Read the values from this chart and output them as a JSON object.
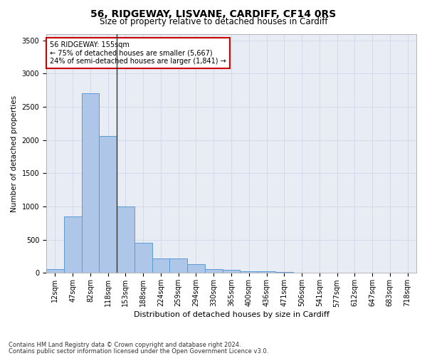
{
  "title1": "56, RIDGEWAY, LISVANE, CARDIFF, CF14 0RS",
  "title2": "Size of property relative to detached houses in Cardiff",
  "xlabel": "Distribution of detached houses by size in Cardiff",
  "ylabel": "Number of detached properties",
  "categories": [
    "12sqm",
    "47sqm",
    "82sqm",
    "118sqm",
    "153sqm",
    "188sqm",
    "224sqm",
    "259sqm",
    "294sqm",
    "330sqm",
    "365sqm",
    "400sqm",
    "436sqm",
    "471sqm",
    "506sqm",
    "541sqm",
    "577sqm",
    "612sqm",
    "647sqm",
    "683sqm",
    "718sqm"
  ],
  "values": [
    55,
    850,
    2700,
    2060,
    1005,
    455,
    220,
    220,
    130,
    60,
    50,
    30,
    25,
    20,
    0,
    0,
    0,
    0,
    0,
    0,
    0
  ],
  "bar_color": "#aec6e8",
  "bar_edge_color": "#5b9bd5",
  "vline_index": 3,
  "vline_color": "#333333",
  "annotation_text": "56 RIDGEWAY: 155sqm\n← 75% of detached houses are smaller (5,667)\n24% of semi-detached houses are larger (1,841) →",
  "annotation_box_color": "#ffffff",
  "annotation_box_edge": "#cc0000",
  "ylim": [
    0,
    3600
  ],
  "yticks": [
    0,
    500,
    1000,
    1500,
    2000,
    2500,
    3000,
    3500
  ],
  "grid_color": "#d0d8e8",
  "bg_color": "#e8edf5",
  "footer1": "Contains HM Land Registry data © Crown copyright and database right 2024.",
  "footer2": "Contains public sector information licensed under the Open Government Licence v3.0.",
  "title1_fontsize": 10,
  "title2_fontsize": 8.5,
  "xlabel_fontsize": 8,
  "ylabel_fontsize": 7.5,
  "tick_fontsize": 7,
  "annotation_fontsize": 7,
  "footer_fontsize": 6
}
